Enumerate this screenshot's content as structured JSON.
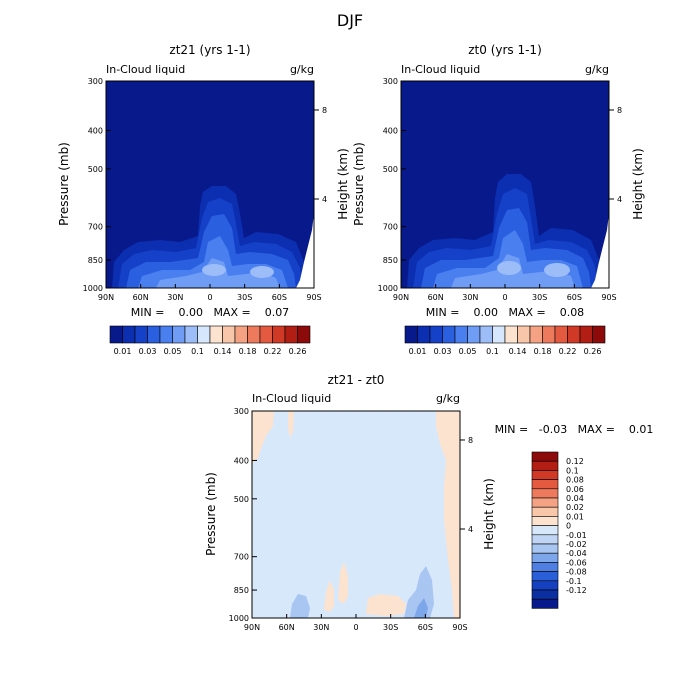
{
  "page_title": "DJF",
  "chart_data": [
    {
      "type": "heatmap",
      "title": "zt21 (yrs 1-1)",
      "subtitle_left": "In-Cloud liquid",
      "subtitle_right": "g/kg",
      "xlabel": "",
      "ylabel": "Pressure (mb)",
      "ylabel_right": "Height (km)",
      "x_ticks": [
        "90N",
        "60N",
        "30N",
        "0",
        "30S",
        "60S",
        "90S"
      ],
      "y_ticks": [
        "300",
        "400",
        "500",
        "700",
        "850",
        "1000"
      ],
      "y_ticks_right": [
        "8",
        "4"
      ],
      "stats": "MIN =    0.00   MAX =    0.07",
      "colorbar_labels": [
        "0.01",
        "0.03",
        "0.05",
        "0.1",
        "0.14",
        "0.18",
        "0.22",
        "0.26"
      ],
      "levels": [
        0.005,
        0.01,
        0.02,
        0.03,
        0.04,
        0.05,
        0.07,
        0.1,
        0.12,
        0.14,
        0.16,
        0.18,
        0.2,
        0.22,
        0.24,
        0.26
      ]
    },
    {
      "type": "heatmap",
      "title": "zt0 (yrs 1-1)",
      "subtitle_left": "In-Cloud liquid",
      "subtitle_right": "g/kg",
      "xlabel": "",
      "ylabel": "Pressure (mb)",
      "ylabel_right": "Height (km)",
      "x_ticks": [
        "90N",
        "60N",
        "30N",
        "0",
        "30S",
        "60S",
        "90S"
      ],
      "y_ticks": [
        "300",
        "400",
        "500",
        "700",
        "850",
        "1000"
      ],
      "y_ticks_right": [
        "8",
        "4"
      ],
      "stats": "MIN =    0.00   MAX =    0.08",
      "colorbar_labels": [
        "0.01",
        "0.03",
        "0.05",
        "0.1",
        "0.14",
        "0.18",
        "0.22",
        "0.26"
      ],
      "levels": [
        0.005,
        0.01,
        0.02,
        0.03,
        0.04,
        0.05,
        0.07,
        0.1,
        0.12,
        0.14,
        0.16,
        0.18,
        0.2,
        0.22,
        0.24,
        0.26
      ]
    },
    {
      "type": "heatmap",
      "title": "zt21 - zt0",
      "subtitle_left": "In-Cloud liquid",
      "subtitle_right": "g/kg",
      "xlabel": "",
      "ylabel": "Pressure (mb)",
      "ylabel_right": "Height (km)",
      "x_ticks": [
        "90N",
        "60N",
        "30N",
        "0",
        "30S",
        "60S",
        "90S"
      ],
      "y_ticks": [
        "300",
        "400",
        "500",
        "700",
        "850",
        "1000"
      ],
      "y_ticks_right": [
        "8",
        "4"
      ],
      "stats": "MIN =   -0.03   MAX =    0.01",
      "colorbar_labels": [
        "0.12",
        "0.1",
        "0.08",
        "0.06",
        "0.04",
        "0.02",
        "0.01",
        "0",
        "-0.01",
        "-0.02",
        "-0.04",
        "-0.06",
        "-0.08",
        "-0.1",
        "-0.12"
      ]
    }
  ]
}
